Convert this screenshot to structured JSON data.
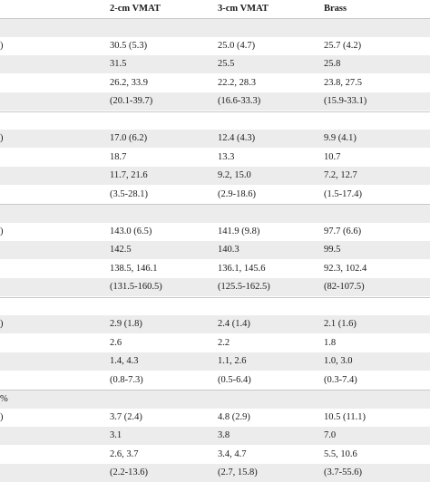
{
  "header": {
    "c1": "2-cm VMAT",
    "c2": "3-cm VMAT",
    "c3": "Brass"
  },
  "rows": [
    {
      "kind": "section",
      "c0": "",
      "c1": "",
      "c2": "",
      "c3": ""
    },
    {
      "kind": "data",
      "c0": ")",
      "c1": "30.5 (5.3)",
      "c2": "25.0 (4.7)",
      "c3": "25.7 (4.2)"
    },
    {
      "kind": "data",
      "c0": "",
      "c1": "31.5",
      "c2": "25.5",
      "c3": "25.8"
    },
    {
      "kind": "data",
      "c0": "",
      "c1": "26.2, 33.9",
      "c2": "22.2, 28.3",
      "c3": "23.8, 27.5"
    },
    {
      "kind": "data",
      "c0": "",
      "c1": "(20.1-39.7)",
      "c2": "(16.6-33.3)",
      "c3": "(15.9-33.1)"
    },
    {
      "kind": "section",
      "c0": "",
      "c1": "",
      "c2": "",
      "c3": ""
    },
    {
      "kind": "data",
      "c0": ")",
      "c1": "17.0 (6.2)",
      "c2": "12.4 (4.3)",
      "c3": "9.9 (4.1)"
    },
    {
      "kind": "data",
      "c0": "",
      "c1": "18.7",
      "c2": "13.3",
      "c3": "10.7"
    },
    {
      "kind": "data",
      "c0": "",
      "c1": "11.7, 21.6",
      "c2": "9.2, 15.0",
      "c3": "7.2, 12.7"
    },
    {
      "kind": "data",
      "c0": "",
      "c1": "(3.5-28.1)",
      "c2": "(2.9-18.6)",
      "c3": "(1.5-17.4)"
    },
    {
      "kind": "section",
      "c0": "",
      "c1": "",
      "c2": "",
      "c3": ""
    },
    {
      "kind": "data",
      "c0": ")",
      "c1": "143.0 (6.5)",
      "c2": "141.9 (9.8)",
      "c3": "97.7 (6.6)"
    },
    {
      "kind": "data",
      "c0": "",
      "c1": "142.5",
      "c2": "140.3",
      "c3": "99.5"
    },
    {
      "kind": "data",
      "c0": "",
      "c1": "138.5, 146.1",
      "c2": "136.1, 145.6",
      "c3": "92.3, 102.4"
    },
    {
      "kind": "data",
      "c0": "",
      "c1": "(131.5-160.5)",
      "c2": "(125.5-162.5)",
      "c3": "(82-107.5)"
    },
    {
      "kind": "section",
      "c0": "",
      "c1": "",
      "c2": "",
      "c3": ""
    },
    {
      "kind": "data",
      "c0": ")",
      "c1": "2.9 (1.8)",
      "c2": "2.4 (1.4)",
      "c3": "2.1 (1.6)"
    },
    {
      "kind": "data",
      "c0": "",
      "c1": "2.6",
      "c2": "2.2",
      "c3": "1.8"
    },
    {
      "kind": "data",
      "c0": "",
      "c1": "1.4, 4.3",
      "c2": "1.1, 2.6",
      "c3": "1.0, 3.0"
    },
    {
      "kind": "data",
      "c0": "",
      "c1": "(0.8-7.3)",
      "c2": "(0.5-6.4)",
      "c3": "(0.3-7.4)"
    },
    {
      "kind": "section",
      "c0": "%",
      "c1": "",
      "c2": "",
      "c3": ""
    },
    {
      "kind": "data",
      "c0": ")",
      "c1": "3.7 (2.4)",
      "c2": "4.8 (2.9)",
      "c3": "10.5 (11.1)"
    },
    {
      "kind": "data",
      "c0": "",
      "c1": "3.1",
      "c2": "3.8",
      "c3": "7.0"
    },
    {
      "kind": "data",
      "c0": "",
      "c1": "2.6, 3.7",
      "c2": "3.4, 4.7",
      "c3": "5.5, 10.6"
    },
    {
      "kind": "data",
      "c0": "",
      "c1": "(2.2-13.6)",
      "c2": "(2.7, 15.8)",
      "c3": "(3.7-55.6)"
    }
  ]
}
